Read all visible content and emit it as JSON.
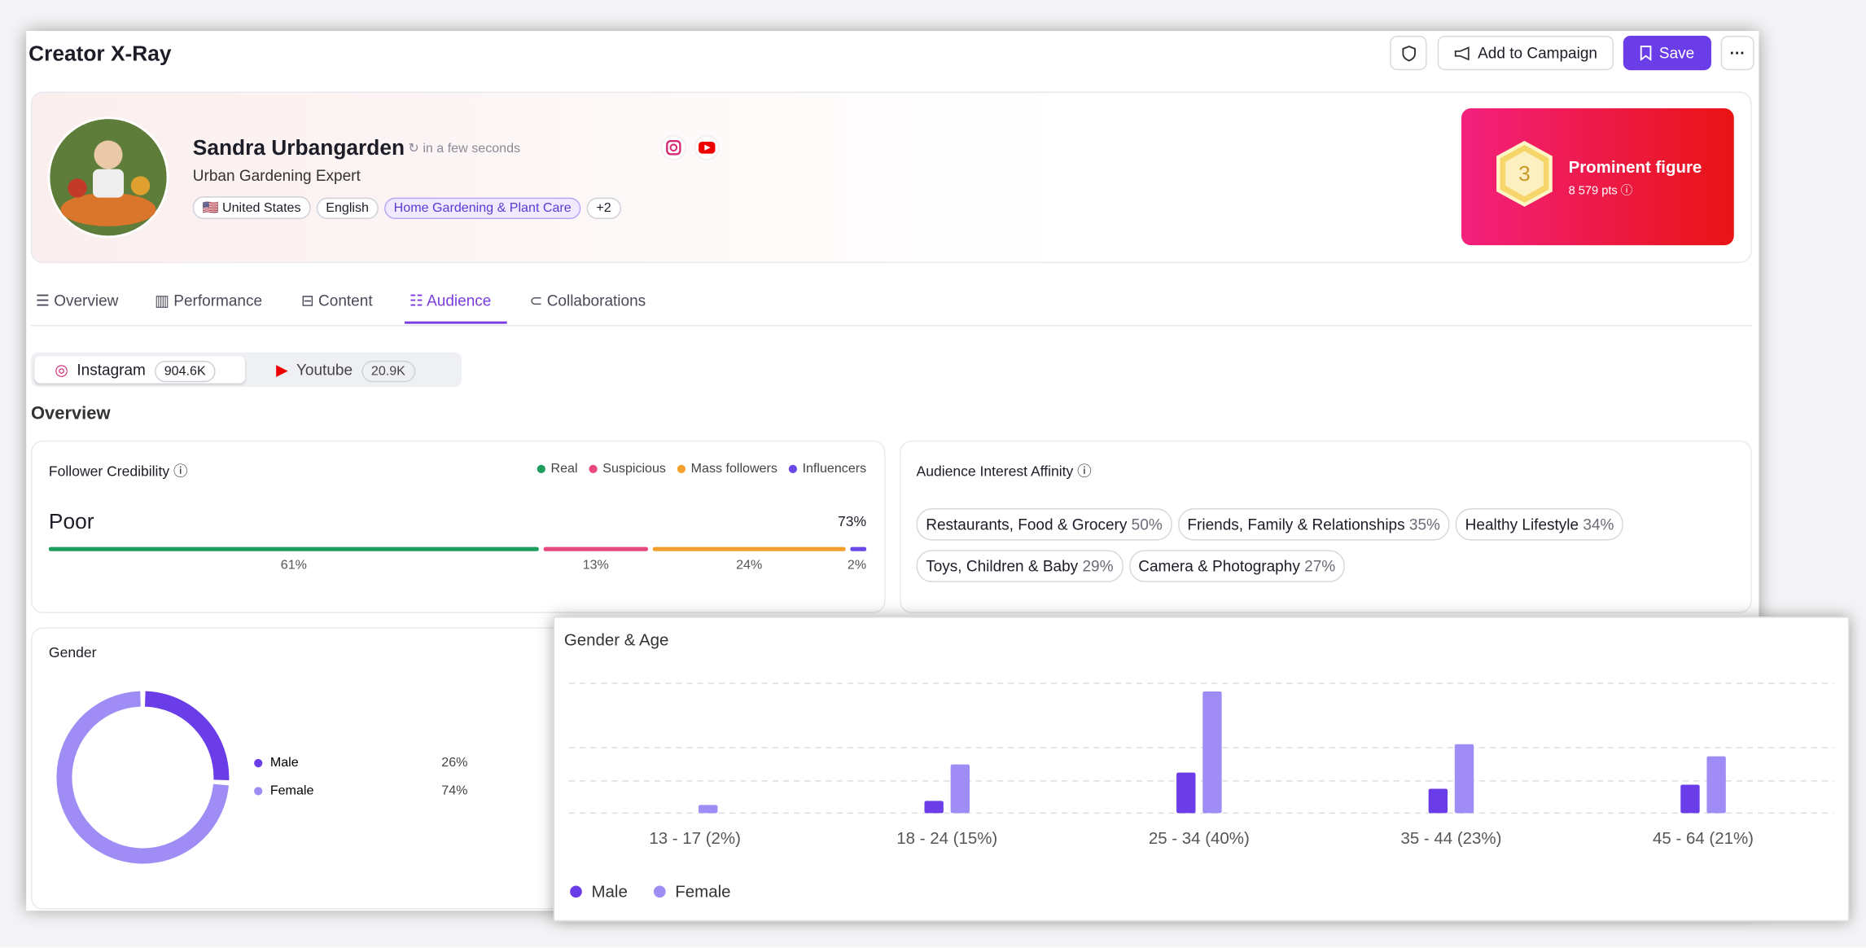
{
  "header": {
    "title": "Creator X-Ray",
    "buttons": [
      "Add to Campaign",
      "Save"
    ]
  },
  "profile": {
    "name": "Sandra Urbangarden",
    "updated": "in a few seconds",
    "bio": "Urban Gardening Expert",
    "tags": [
      "🇺🇸 United States",
      "English",
      "Home Gardening & Plant Care",
      "+2"
    ],
    "badge": {
      "rank": "3",
      "title": "Prominent figure",
      "points": "8 579 pts"
    }
  },
  "tabs": [
    "Overview",
    "Performance",
    "Content",
    "Audience",
    "Collaborations"
  ],
  "platforms": [
    {
      "name": "Instagram",
      "count": "904.6K"
    },
    {
      "name": "Youtube",
      "count": "20.9K"
    }
  ],
  "section_title": "Overview",
  "credibility": {
    "rating": "Poor",
    "score": "73%"
  },
  "affinity": {
    "title": "Audience Interest Affinity",
    "interests": [
      {
        "name": "Restaurants, Food & Grocery",
        "share": "50%"
      },
      {
        "name": "Friends, Family & Relationships",
        "share": "35%"
      },
      {
        "name": "Healthy Lifestyle",
        "share": "34%"
      },
      {
        "name": "Toys, Children & Baby",
        "share": "29%"
      },
      {
        "name": "Camera & Photography",
        "share": "27%"
      }
    ]
  },
  "chart_data": [
    {
      "type": "stacked-bar",
      "title": "Follower Credibility",
      "series": [
        {
          "name": "Real",
          "color": "#1f9d5c",
          "values": [
            61
          ],
          "value_labels": [
            "61%"
          ]
        },
        {
          "name": "Suspicious",
          "color": "#e8497c",
          "values": [
            13
          ],
          "value_labels": [
            "13%"
          ]
        },
        {
          "name": "Mass followers",
          "color": "#f2a22c",
          "values": [
            24
          ],
          "value_labels": [
            "24%"
          ]
        },
        {
          "name": "Influencers",
          "color": "#6a48e8",
          "values": [
            2
          ],
          "value_labels": [
            "2%"
          ]
        }
      ]
    },
    {
      "type": "pie",
      "title": "Gender",
      "donut": true,
      "categories": [
        "Male",
        "Female"
      ],
      "values": [
        26,
        74
      ],
      "value_labels": [
        "26%",
        "74%"
      ],
      "colors": [
        "#6a3de8",
        "#a08cf5"
      ]
    },
    {
      "type": "bar",
      "title": "Gender & Age",
      "categories": [
        "13 - 17 (2%)",
        "18 - 24 (15%)",
        "25 - 34 (40%)",
        "35 - 44 (23%)",
        "45 - 64 (21%)"
      ],
      "series": [
        {
          "name": "Male",
          "color": "#6a3de8",
          "values": [
            0,
            3,
            10,
            6,
            7
          ]
        },
        {
          "name": "Female",
          "color": "#a08cf5",
          "values": [
            2,
            12,
            30,
            17,
            14
          ]
        }
      ],
      "ylim": [
        0,
        32
      ]
    }
  ]
}
